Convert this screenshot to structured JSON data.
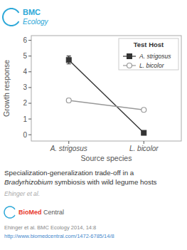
{
  "chart_data": {
    "type": "line",
    "xlabel": "Source species",
    "ylabel": "Growth response",
    "categories": [
      "A. strigosus",
      "L. bicolor"
    ],
    "series": [
      {
        "name": "A. strigosus",
        "color": "#333333",
        "marker": "square",
        "line_style": "solid",
        "values": [
          4.75,
          0.12
        ],
        "errors": [
          0.25,
          0.08
        ]
      },
      {
        "name": "L. bicolor",
        "color": "#999999",
        "marker": "open-circle",
        "line_style": "solid",
        "values": [
          2.18,
          1.58
        ],
        "errors": [
          0.12,
          0.1
        ]
      }
    ],
    "ylim": [
      -0.4,
      6.3
    ],
    "yticks": [
      0,
      1,
      2,
      3,
      4,
      5,
      6
    ],
    "grid": false,
    "legend": "upper right",
    "legend_title": "Test Host",
    "subtitle": [
      "Specialization-generalization trade-off in a",
      "Bradyrhizobium",
      " symbiosis with wild legume hosts"
    ],
    "annotations": [
      {
        "text": "BMC",
        "color": "#2DA8D8"
      },
      {
        "text": "Ecology",
        "color": "#2DA8D8"
      },
      {
        "text": "Ehinger et al.",
        "color": "#aaaaaa"
      },
      {
        "text": "BioMed",
        "color": "#E8382D"
      },
      {
        "text": " Central",
        "color": "#555555"
      },
      {
        "text": "Ehinger et al. BMC Ecology 2014, 14:8",
        "color": "#888888"
      },
      {
        "text": "http://www.biomedcentral.com/1472-6785/14/8",
        "color": "#4488cc"
      }
    ]
  }
}
